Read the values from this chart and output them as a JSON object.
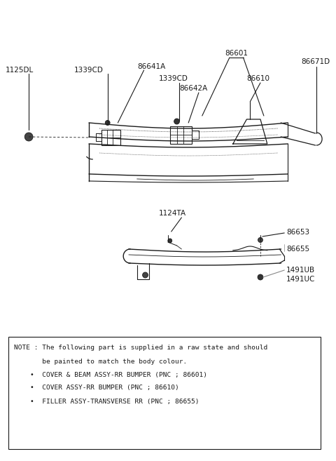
{
  "bg_color": "#ffffff",
  "line_color": "#1a1a1a",
  "text_color": "#1a1a1a",
  "note_text_line1": "NOTE : The following part is supplied in a raw state and should",
  "note_text_line2": "       be painted to match the body colour.",
  "note_text_line3": "    *  COVER & BEAM ASSY-RR BUMPER (PNC ; 86601)",
  "note_text_line4": "    *  COVER ASSY-RR BUMPER (PNC ; 86610)",
  "note_text_line5": "    *  FILLER ASSY-TRANSVERSE RR (PNC ; 86655)"
}
